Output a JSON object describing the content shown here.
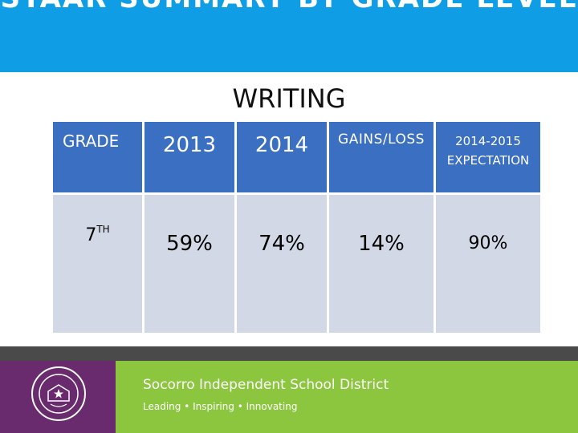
{
  "slide": {
    "title": "STAAR SUMMARY BY GRADE LEVEL",
    "subtitle": "WRITING"
  },
  "table": {
    "headers": [
      "GRADE",
      "2013",
      "2014",
      "GAINS/LOSS",
      "2014-2015",
      "EXPECTATION"
    ],
    "row": {
      "grade_number": "7",
      "grade_suffix": "TH",
      "y2013": "59%",
      "y2014": "74%",
      "gains": "14%",
      "expectation": "90%"
    }
  },
  "footer": {
    "district_name": "Socorro Independent School District",
    "tagline": "Leading • Inspiring • Innovating",
    "logo": "district-seal"
  },
  "colors": {
    "banner": "#0f9ee6",
    "header_cell": "#3b6fc2",
    "body_cell": "#d2d8e6",
    "footer_green": "#8cc63f",
    "footer_purple": "#6a2a6e",
    "footer_bar": "#4a4a4a"
  }
}
